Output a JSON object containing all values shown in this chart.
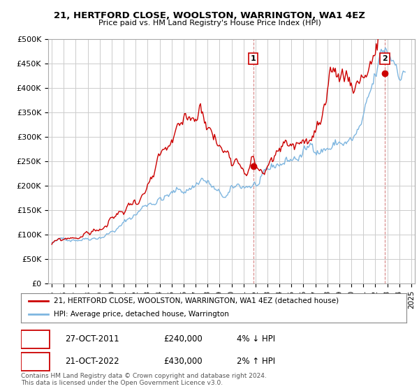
{
  "title": "21, HERTFORD CLOSE, WOOLSTON, WARRINGTON, WA1 4EZ",
  "subtitle": "Price paid vs. HM Land Registry's House Price Index (HPI)",
  "background_color": "#ffffff",
  "plot_bg_color": "#ffffff",
  "grid_color": "#cccccc",
  "fill_color": "#c6d9f0",
  "ylim": [
    0,
    500000
  ],
  "yticks": [
    0,
    50000,
    100000,
    150000,
    200000,
    250000,
    300000,
    350000,
    400000,
    450000,
    500000
  ],
  "ytick_labels": [
    "£0",
    "£50K",
    "£100K",
    "£150K",
    "£200K",
    "£250K",
    "£300K",
    "£350K",
    "£400K",
    "£450K",
    "£500K"
  ],
  "hpi_color": "#7eb6e0",
  "price_color": "#cc0000",
  "legend_price_label": "21, HERTFORD CLOSE, WOOLSTON, WARRINGTON, WA1 4EZ (detached house)",
  "legend_hpi_label": "HPI: Average price, detached house, Warrington",
  "copyright": "Contains HM Land Registry data © Crown copyright and database right 2024.\nThis data is licensed under the Open Government Licence v3.0.",
  "sale1_year": 2011.82,
  "sale1_price": 240000,
  "sale2_year": 2022.8,
  "sale2_price": 430000,
  "xlim_left": 1994.7,
  "xlim_right": 2025.3,
  "xtick_years": [
    1995,
    1996,
    1997,
    1998,
    1999,
    2000,
    2001,
    2002,
    2003,
    2004,
    2005,
    2006,
    2007,
    2008,
    2009,
    2010,
    2011,
    2012,
    2013,
    2014,
    2015,
    2016,
    2017,
    2018,
    2019,
    2020,
    2021,
    2022,
    2023,
    2024,
    2025
  ]
}
